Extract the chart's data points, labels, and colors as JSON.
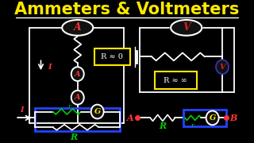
{
  "title": "Ammeters & Voltmeters",
  "title_color": "#FFE800",
  "bg_color": "#000000",
  "title_fontsize": 15,
  "underline_color": "#FFFFFF",
  "ammeter_label": "A",
  "voltmeter_label": "V",
  "r_approx_0": "R ≈ 0",
  "r_approx_inf": "R ≈ ∞",
  "current_label": "I",
  "galv_label": "G",
  "shunt_label": "r",
  "res_label": "R",
  "node_A": "A",
  "node_B": "B",
  "ammeter_color": "#FF3333",
  "voltmeter_color": "#CC2222",
  "voltmeter_circle_color": "#3333AA",
  "green_color": "#00CC00",
  "blue_color": "#2244FF",
  "yellow_color": "#FFE800",
  "red_label_color": "#FF3333"
}
